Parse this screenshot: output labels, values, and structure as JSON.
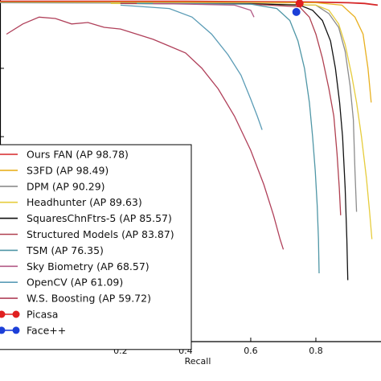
{
  "chart_data": {
    "type": "line",
    "title": "",
    "xlabel": "Recall",
    "ylabel": "",
    "xlim": [
      -0.17,
      1.0
    ],
    "ylim": [
      0.0,
      1.0
    ],
    "x_ticks": [
      0.2,
      0.4,
      0.6,
      0.8
    ],
    "x_tick_labels": [
      "0.2",
      "0.4",
      "0.6",
      "0.8"
    ],
    "grid": false,
    "legend_position": "lower-left",
    "series": [
      {
        "name": "Ours FAN (AP 98.78)",
        "color": "#d62728",
        "points": [
          [
            -0.17,
            0.996
          ],
          [
            0.2,
            0.996
          ],
          [
            0.4,
            0.996
          ],
          [
            0.6,
            0.995
          ],
          [
            0.8,
            0.994
          ],
          [
            0.9,
            0.992
          ],
          [
            0.95,
            0.99
          ],
          [
            0.99,
            0.985
          ]
        ]
      },
      {
        "name": "S3FD (AP 98.49)",
        "color": "#e8b020",
        "points": [
          [
            -0.17,
            0.994
          ],
          [
            0.4,
            0.994
          ],
          [
            0.6,
            0.993
          ],
          [
            0.8,
            0.992
          ],
          [
            0.88,
            0.985
          ],
          [
            0.92,
            0.95
          ],
          [
            0.945,
            0.9
          ],
          [
            0.96,
            0.8
          ],
          [
            0.97,
            0.7
          ]
        ]
      },
      {
        "name": "DPM (AP 90.29)",
        "color": "#8c8c8c",
        "points": [
          [
            -0.17,
            0.992
          ],
          [
            0.6,
            0.99
          ],
          [
            0.8,
            0.985
          ],
          [
            0.84,
            0.96
          ],
          [
            0.87,
            0.92
          ],
          [
            0.89,
            0.85
          ],
          [
            0.905,
            0.75
          ],
          [
            0.915,
            0.65
          ],
          [
            0.92,
            0.5
          ],
          [
            0.925,
            0.38
          ]
        ]
      },
      {
        "name": "Headhunter (AP 89.63)",
        "color": "#e6cc3c",
        "points": [
          [
            0.17,
            0.99
          ],
          [
            0.6,
            0.989
          ],
          [
            0.8,
            0.985
          ],
          [
            0.84,
            0.97
          ],
          [
            0.87,
            0.93
          ],
          [
            0.89,
            0.87
          ],
          [
            0.91,
            0.78
          ],
          [
            0.925,
            0.7
          ],
          [
            0.94,
            0.6
          ],
          [
            0.955,
            0.48
          ],
          [
            0.965,
            0.38
          ],
          [
            0.972,
            0.3
          ]
        ]
      },
      {
        "name": "SquaresChnFtrs-5 (AP 85.57)",
        "color": "#111111",
        "points": [
          [
            0.2,
            0.99
          ],
          [
            0.6,
            0.989
          ],
          [
            0.75,
            0.985
          ],
          [
            0.79,
            0.97
          ],
          [
            0.82,
            0.94
          ],
          [
            0.845,
            0.88
          ],
          [
            0.86,
            0.8
          ],
          [
            0.873,
            0.7
          ],
          [
            0.882,
            0.6
          ],
          [
            0.89,
            0.45
          ],
          [
            0.895,
            0.3
          ],
          [
            0.898,
            0.18
          ]
        ]
      },
      {
        "name": "Structured Models (AP 83.87)",
        "color": "#b04050",
        "points": [
          [
            0.2,
            0.99
          ],
          [
            0.6,
            0.988
          ],
          [
            0.75,
            0.98
          ],
          [
            0.78,
            0.95
          ],
          [
            0.8,
            0.9
          ],
          [
            0.82,
            0.83
          ],
          [
            0.84,
            0.74
          ],
          [
            0.855,
            0.66
          ],
          [
            0.865,
            0.55
          ],
          [
            0.872,
            0.45
          ],
          [
            0.876,
            0.37
          ]
        ]
      },
      {
        "name": "TSM (AP 76.35)",
        "color": "#4f96a6",
        "points": [
          [
            0.25,
            0.99
          ],
          [
            0.6,
            0.988
          ],
          [
            0.68,
            0.975
          ],
          [
            0.72,
            0.94
          ],
          [
            0.745,
            0.88
          ],
          [
            0.765,
            0.8
          ],
          [
            0.78,
            0.7
          ],
          [
            0.79,
            0.6
          ],
          [
            0.798,
            0.5
          ],
          [
            0.804,
            0.4
          ],
          [
            0.808,
            0.3
          ],
          [
            0.81,
            0.2
          ]
        ]
      },
      {
        "name": "Sky Biometry (AP 68.57)",
        "color": "#b25a86",
        "points": [
          [
            0.3,
            0.99
          ],
          [
            0.55,
            0.985
          ],
          [
            0.6,
            0.97
          ],
          [
            0.61,
            0.95
          ]
        ]
      },
      {
        "name": "OpenCV (AP 61.09)",
        "color": "#5b9cb6",
        "points": [
          [
            0.2,
            0.985
          ],
          [
            0.35,
            0.975
          ],
          [
            0.42,
            0.95
          ],
          [
            0.48,
            0.9
          ],
          [
            0.53,
            0.84
          ],
          [
            0.57,
            0.78
          ],
          [
            0.6,
            0.71
          ],
          [
            0.62,
            0.66
          ],
          [
            0.635,
            0.62
          ]
        ]
      },
      {
        "name": "W.S. Boosting (AP 59.72)",
        "color": "#b0405a",
        "points": [
          [
            -0.15,
            0.9
          ],
          [
            -0.1,
            0.93
          ],
          [
            -0.05,
            0.95
          ],
          [
            0.0,
            0.946
          ],
          [
            0.05,
            0.93
          ],
          [
            0.1,
            0.934
          ],
          [
            0.15,
            0.92
          ],
          [
            0.2,
            0.915
          ],
          [
            0.25,
            0.9
          ],
          [
            0.3,
            0.885
          ],
          [
            0.35,
            0.865
          ],
          [
            0.4,
            0.845
          ],
          [
            0.45,
            0.8
          ],
          [
            0.5,
            0.74
          ],
          [
            0.55,
            0.66
          ],
          [
            0.6,
            0.56
          ],
          [
            0.64,
            0.46
          ],
          [
            0.67,
            0.37
          ],
          [
            0.69,
            0.3
          ],
          [
            0.7,
            0.27
          ]
        ]
      },
      {
        "name": "Picasa",
        "color": "#e02020",
        "marker": "circle",
        "points": [
          [
            0.75,
            0.99
          ]
        ]
      },
      {
        "name": "Face++",
        "color": "#1c3fd8",
        "marker": "circle",
        "points": [
          [
            0.74,
            0.965
          ]
        ]
      }
    ]
  }
}
